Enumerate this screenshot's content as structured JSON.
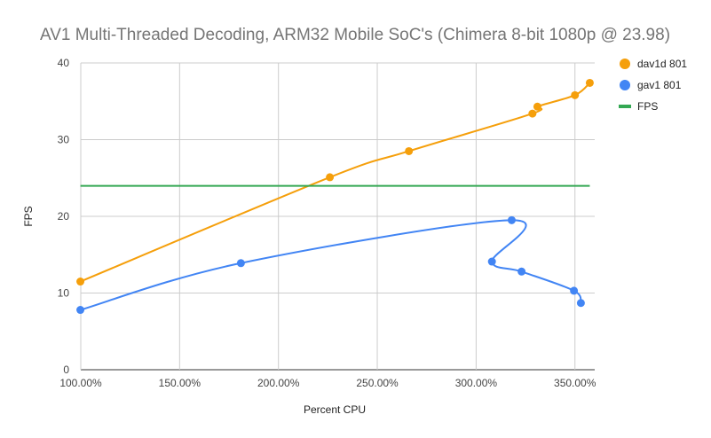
{
  "chart_data": {
    "type": "scatter",
    "title": "AV1 Multi-Threaded Decoding, ARM32 Mobile SoC's (Chimera 8-bit 1080p @ 23.98)",
    "xlabel": "Percent CPU",
    "ylabel": "FPS",
    "xlim": [
      100,
      360
    ],
    "ylim": [
      0,
      40
    ],
    "x_ticks": [
      100,
      150,
      200,
      250,
      300,
      350
    ],
    "x_tick_labels": [
      "100.00%",
      "150.00%",
      "200.00%",
      "250.00%",
      "300.00%",
      "350.00%"
    ],
    "y_ticks": [
      0,
      10,
      20,
      30,
      40
    ],
    "y_tick_labels": [
      "0",
      "10",
      "20",
      "30",
      "40"
    ],
    "grid": true,
    "legend_position": "right",
    "series": [
      {
        "name": "dav1d 801",
        "color": "#F59F0B",
        "style": "smooth-line-with-markers",
        "points": [
          [
            99.8,
            11.5
          ],
          [
            226,
            25.1
          ],
          [
            266,
            28.5
          ],
          [
            328.5,
            33.4
          ],
          [
            331,
            34.3
          ],
          [
            350,
            35.8
          ],
          [
            357.5,
            37.4
          ]
        ]
      },
      {
        "name": "gav1 801",
        "color": "#4285F4",
        "style": "smooth-line-with-markers",
        "points": [
          [
            99.8,
            7.8
          ],
          [
            181,
            13.9
          ],
          [
            318,
            19.5
          ],
          [
            308,
            14.1
          ],
          [
            323,
            12.8
          ],
          [
            349.5,
            10.3
          ],
          [
            353,
            8.7
          ]
        ]
      },
      {
        "name": "FPS",
        "color": "#34A853",
        "style": "line",
        "points": [
          [
            99.8,
            23.98
          ],
          [
            357.5,
            23.98
          ]
        ]
      }
    ]
  }
}
